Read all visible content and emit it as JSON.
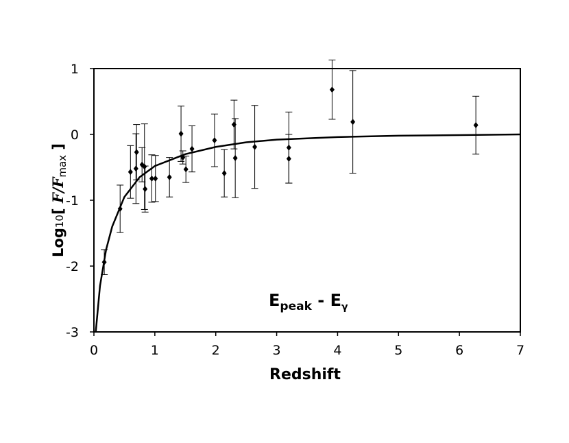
{
  "chart_data": {
    "type": "scatter",
    "xlabel": "Redshift",
    "ylabel_parts": [
      "Log",
      "10",
      "[ ",
      "F/F",
      "max",
      " ]"
    ],
    "annotation_parts": [
      "E",
      "peak",
      " - E",
      "γ"
    ],
    "xlim": [
      0,
      7
    ],
    "ylim": [
      -3,
      1
    ],
    "xticks": [
      0,
      1,
      2,
      3,
      4,
      5,
      6,
      7
    ],
    "yticks": [
      -3,
      -2,
      -1,
      0,
      1
    ],
    "grid": false,
    "series": [
      {
        "color": "#000000",
        "x": [
          0.17,
          0.43,
          0.6,
          0.7,
          0.69,
          0.79,
          0.83,
          0.84,
          0.95,
          1.01,
          1.24,
          1.43,
          1.46,
          1.51,
          1.61,
          1.98,
          2.14,
          2.3,
          2.32,
          2.64,
          3.2,
          3.2,
          3.91,
          4.25,
          6.27
        ],
        "values": [
          -1.94,
          -1.13,
          -0.57,
          -0.27,
          -0.52,
          -0.46,
          -0.49,
          -0.83,
          -0.67,
          -0.67,
          -0.65,
          0.01,
          -0.35,
          -0.53,
          -0.22,
          -0.09,
          -0.59,
          0.15,
          -0.36,
          -0.19,
          -0.2,
          -0.37,
          0.68,
          0.19,
          0.14
        ],
        "errors": [
          0.19,
          0.36,
          0.4,
          0.42,
          0.53,
          0.26,
          0.65,
          0.35,
          0.36,
          0.35,
          0.3,
          0.42,
          0.1,
          0.2,
          0.35,
          0.4,
          0.36,
          0.37,
          0.6,
          0.63,
          0.54,
          0.37,
          0.45,
          0.78,
          0.44
        ]
      },
      {
        "type": "line",
        "color": "#000000",
        "x": [
          0.03,
          0.1,
          0.2,
          0.3,
          0.5,
          0.75,
          1,
          1.5,
          2,
          2.5,
          3,
          4,
          5,
          6,
          7
        ],
        "values": [
          -3,
          -2.3,
          -1.75,
          -1.4,
          -0.95,
          -0.65,
          -0.48,
          -0.3,
          -0.19,
          -0.12,
          -0.08,
          -0.04,
          -0.02,
          -0.01,
          0
        ]
      }
    ]
  }
}
